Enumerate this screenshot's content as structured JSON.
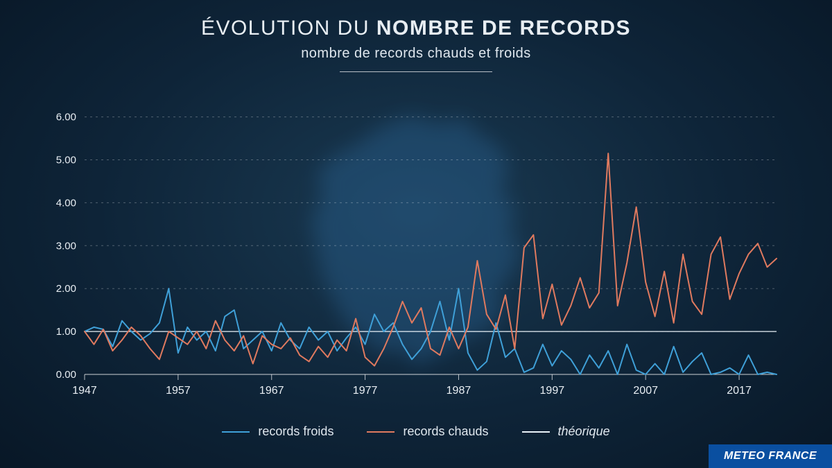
{
  "title_light": "ÉVOLUTION DU ",
  "title_bold": "NOMBRE DE RECORDS",
  "subtitle": "nombre de records chauds et froids",
  "brand": "METEO FRANCE",
  "chart": {
    "type": "line",
    "background_gradient": {
      "inner": "#1a3a52",
      "mid": "#0e2438",
      "outer": "#081726"
    },
    "silhouette_color": "#2d6a9e",
    "xlim": [
      1947,
      2021
    ],
    "ylim": [
      0,
      6.3
    ],
    "ytick_step": 1.0,
    "yticks": [
      "0.00",
      "1.00",
      "2.00",
      "3.00",
      "4.00",
      "5.00",
      "6.00"
    ],
    "xtick_start": 1947,
    "xtick_step": 10,
    "xticks": [
      "1947",
      "1957",
      "1967",
      "1977",
      "1987",
      "1997",
      "2007",
      "2017"
    ],
    "grid_color": "rgba(255,255,255,0.28)",
    "axis_color": "rgba(255,255,255,0.8)",
    "label_fontsize": 16,
    "line_width": 2,
    "theoretical": {
      "label": "théorique",
      "color": "#eaf2f8",
      "value": 1.0
    },
    "series": [
      {
        "key": "froids",
        "label": "records froids",
        "color": "#3fa0d8",
        "start_year": 1947,
        "values": [
          1.0,
          1.1,
          1.05,
          0.65,
          1.25,
          1.0,
          0.8,
          0.95,
          1.2,
          2.0,
          0.5,
          1.1,
          0.8,
          1.0,
          0.55,
          1.35,
          1.5,
          0.6,
          0.8,
          1.0,
          0.55,
          1.2,
          0.8,
          0.6,
          1.1,
          0.8,
          1.0,
          0.55,
          0.85,
          1.1,
          0.7,
          1.4,
          1.0,
          1.2,
          0.7,
          0.35,
          0.6,
          1.0,
          1.7,
          0.8,
          2.0,
          0.5,
          0.1,
          0.3,
          1.2,
          0.4,
          0.6,
          0.05,
          0.15,
          0.7,
          0.2,
          0.55,
          0.35,
          0.0,
          0.45,
          0.15,
          0.55,
          0.0,
          0.7,
          0.1,
          0.0,
          0.25,
          0.0,
          0.65,
          0.05,
          0.3,
          0.5,
          0.0,
          0.05,
          0.15,
          0.0,
          0.45,
          0.0,
          0.05,
          0.0
        ]
      },
      {
        "key": "chauds",
        "label": "records chauds",
        "color": "#e07a5f",
        "start_year": 1947,
        "values": [
          1.0,
          0.7,
          1.05,
          0.55,
          0.8,
          1.1,
          0.9,
          0.6,
          0.35,
          1.0,
          0.85,
          0.7,
          1.0,
          0.6,
          1.25,
          0.8,
          0.55,
          0.9,
          0.25,
          0.9,
          0.7,
          0.6,
          0.85,
          0.45,
          0.3,
          0.65,
          0.4,
          0.8,
          0.55,
          1.3,
          0.4,
          0.2,
          0.6,
          1.1,
          1.7,
          1.2,
          1.55,
          0.6,
          0.45,
          1.1,
          0.6,
          1.1,
          2.65,
          1.4,
          1.05,
          1.85,
          0.6,
          2.95,
          3.25,
          1.3,
          2.1,
          1.15,
          1.6,
          2.25,
          1.55,
          1.9,
          5.15,
          1.6,
          2.6,
          3.9,
          2.15,
          1.35,
          2.4,
          1.2,
          2.8,
          1.7,
          1.4,
          2.8,
          3.2,
          1.75,
          2.35,
          2.8,
          3.05,
          2.5,
          2.7
        ]
      }
    ]
  },
  "legend": [
    {
      "key": "froids",
      "label": "records froids",
      "color": "#3fa0d8",
      "italic": false
    },
    {
      "key": "chauds",
      "label": "records chauds",
      "color": "#e07a5f",
      "italic": false
    },
    {
      "key": "theorique",
      "label": "théorique",
      "color": "#eaf2f8",
      "italic": true
    }
  ]
}
